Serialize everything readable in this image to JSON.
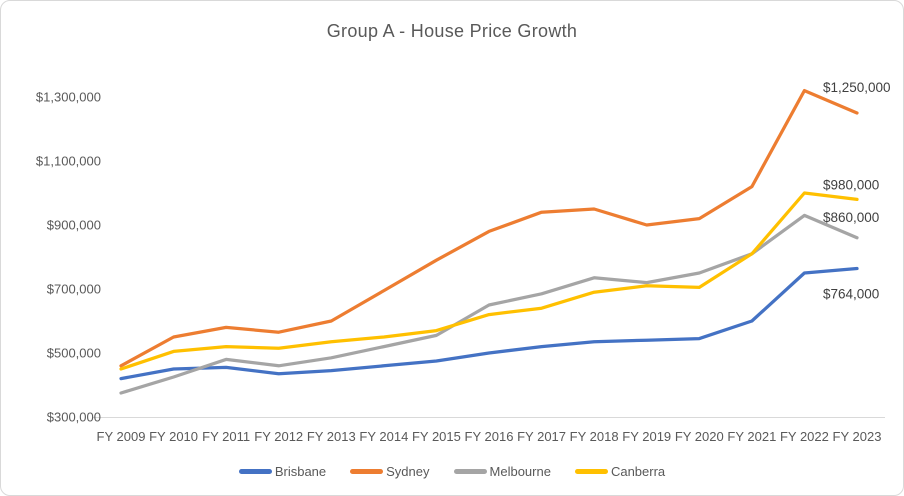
{
  "window": {
    "background_color": "#FFFFFF",
    "border_color": "#D9D9D9"
  },
  "chart_data": {
    "type": "line",
    "title": "Group A - House Price Growth",
    "title_color": "#595959",
    "axis_text_color": "#595959",
    "data_label_color": "#404040",
    "grid": "off",
    "legend_position": "bottom",
    "categories": [
      "FY 2009",
      "FY 2010",
      "FY 2011",
      "FY 2012",
      "FY 2013",
      "FY 2014",
      "FY 2015",
      "FY 2016",
      "FY 2017",
      "FY 2018",
      "FY 2019",
      "FY 2020",
      "FY 2021",
      "FY 2022",
      "FY 2023"
    ],
    "y_axis": {
      "min": 300000,
      "max": 1400000,
      "tick_labels": [
        "$300,000",
        "$500,000",
        "$700,000",
        "$900,000",
        "$1,100,000",
        "$1,300,000"
      ],
      "tick_values": [
        300000,
        500000,
        700000,
        900000,
        1100000,
        1300000
      ]
    },
    "series": [
      {
        "name": "Brisbane",
        "color": "#4472C4",
        "end_label": "$764,000",
        "values": [
          420000,
          450000,
          455000,
          435000,
          445000,
          460000,
          475000,
          500000,
          520000,
          535000,
          540000,
          545000,
          600000,
          750000,
          764000
        ]
      },
      {
        "name": "Sydney",
        "color": "#ED7D31",
        "end_label": "$1,250,000",
        "values": [
          460000,
          550000,
          580000,
          565000,
          600000,
          695000,
          790000,
          880000,
          940000,
          950000,
          900000,
          920000,
          1020000,
          1320000,
          1250000
        ]
      },
      {
        "name": "Melbourne",
        "color": "#A5A5A5",
        "end_label": "$860,000",
        "values": [
          375000,
          425000,
          480000,
          460000,
          485000,
          520000,
          555000,
          650000,
          685000,
          735000,
          720000,
          750000,
          810000,
          930000,
          860000
        ]
      },
      {
        "name": "Canberra",
        "color": "#FFC000",
        "end_label": "$980,000",
        "values": [
          450000,
          505000,
          520000,
          515000,
          535000,
          550000,
          570000,
          620000,
          640000,
          690000,
          710000,
          705000,
          810000,
          1000000,
          980000
        ]
      }
    ]
  }
}
